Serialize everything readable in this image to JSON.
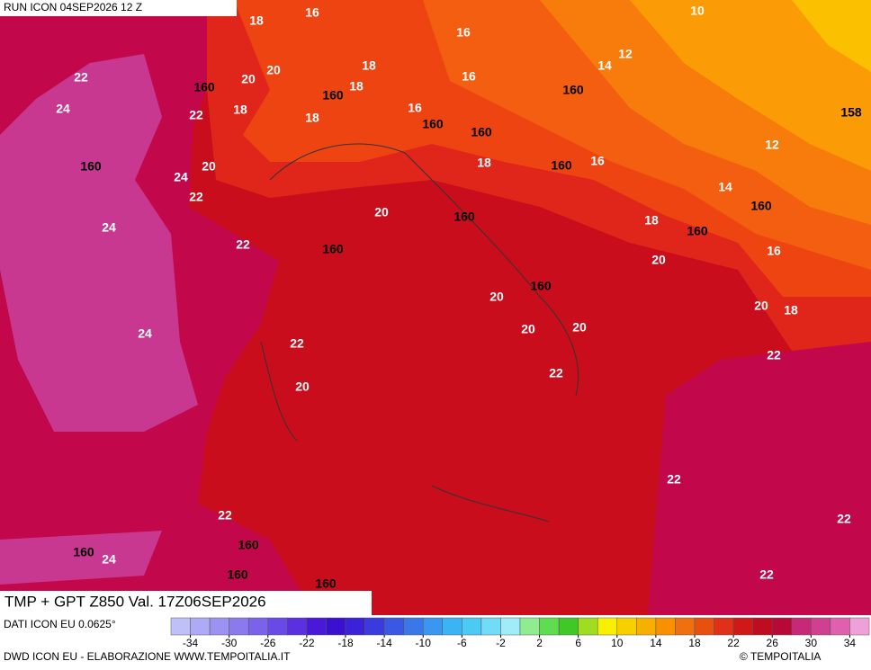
{
  "header": {
    "run": "RUN ICON 04SEP2026 12 Z",
    "field": "TMP + GPT Z850 Val. 17Z06SEP2026"
  },
  "map": {
    "temperature_labels": [
      18,
      16,
      10,
      16,
      12,
      14,
      18,
      20,
      16,
      20,
      18,
      22,
      24,
      22,
      18,
      18,
      16,
      12,
      16,
      18,
      20,
      24,
      14,
      22,
      20,
      18,
      24,
      22,
      16,
      20,
      20,
      20,
      18,
      20,
      20,
      24,
      22,
      22,
      22,
      20,
      22,
      22,
      22,
      24,
      22
    ],
    "height_labels": [
      160,
      160,
      160,
      158,
      160,
      160,
      160,
      160,
      160,
      160,
      160,
      160,
      160,
      160,
      160,
      160,
      160
    ]
  },
  "legend": {
    "source": "DATI ICON EU 0.0625°",
    "ticks": [
      -34,
      -30,
      -26,
      -22,
      -18,
      -14,
      -10,
      -6,
      -2,
      2,
      6,
      10,
      14,
      18,
      22,
      26,
      30,
      34
    ],
    "colors": [
      "#c0c0f8",
      "#aeaaf5",
      "#9c92f2",
      "#8a7aee",
      "#7a62ea",
      "#6a4ae6",
      "#5a30e0",
      "#4a18d8",
      "#3c10d0",
      "#3a22d8",
      "#3a3ade",
      "#3a58e4",
      "#3a78ea",
      "#3a96f0",
      "#3ab4f4",
      "#4ccaf6",
      "#70dcf8",
      "#a0ecf8",
      "#90ec90",
      "#60dc50",
      "#40c828",
      "#a0dc20",
      "#f8f000",
      "#f8d000",
      "#f8b000",
      "#f89000",
      "#f07010",
      "#e85010",
      "#e03018",
      "#d01818",
      "#c00c20",
      "#b80838",
      "#c82878",
      "#d04090",
      "#e060b0",
      "#f0a0d8"
    ]
  },
  "footer": {
    "credit": "DWD ICON EU - ELABORAZIONE WWW.TEMPOITALIA.IT",
    "copyright": "© TEMPOITALIA"
  }
}
